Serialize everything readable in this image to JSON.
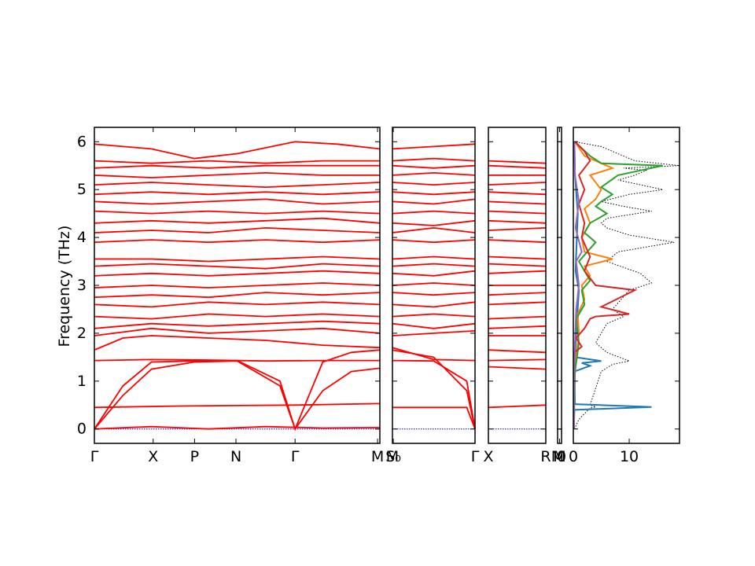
{
  "chart_data": {
    "type": "line",
    "ylabel": "Frequency (THz)",
    "ylim": [
      -0.3,
      6.3
    ],
    "y_ticks": [
      0,
      1,
      2,
      3,
      4,
      5,
      6
    ],
    "band_color": "#ff0000",
    "zero_line_color": "#0000cc",
    "panels": [
      {
        "kind": "band",
        "tick_labels": [
          "Γ",
          "X",
          "P",
          "N",
          "Γ",
          "M"
        ],
        "tick_positions": [
          0,
          0.206,
          0.351,
          0.496,
          0.703,
          0.992
        ],
        "bands": [
          [
            0,
            0,
            0.2,
            0.05,
            0.4,
            0,
            0.6,
            0.05,
            0.8,
            0.02,
            1,
            0.03
          ],
          [
            0,
            0.45,
            0.1,
            0.46,
            0.3,
            0.48,
            0.5,
            0.49,
            0.7,
            0.5,
            1,
            0.53
          ],
          [
            0,
            0,
            0.1,
            0.7,
            0.2,
            1.25,
            0.35,
            1.4,
            0.5,
            1.42,
            0.65,
            0.9,
            0.703,
            0,
            0.8,
            0.8,
            0.9,
            1.2,
            1,
            1.27
          ],
          [
            0,
            0,
            0.1,
            0.9,
            0.2,
            1.4,
            0.35,
            1.42,
            0.5,
            1.43,
            0.65,
            1.0,
            0.703,
            0,
            0.8,
            1.4,
            0.9,
            1.6,
            1,
            1.65
          ],
          [
            0,
            1.43,
            0.2,
            1.45,
            0.4,
            1.44,
            0.6,
            1.42,
            0.8,
            1.43,
            1,
            1.43
          ],
          [
            0,
            1.65,
            0.1,
            1.9,
            0.2,
            1.95,
            0.4,
            1.9,
            0.6,
            1.85,
            0.8,
            1.75,
            1,
            1.7
          ],
          [
            0,
            1.95,
            0.2,
            2.1,
            0.4,
            2.0,
            0.6,
            2.05,
            0.8,
            2.1,
            1,
            2.0
          ],
          [
            0,
            2.1,
            0.2,
            2.2,
            0.4,
            2.15,
            0.6,
            2.2,
            0.8,
            2.25,
            1,
            2.2
          ],
          [
            0,
            2.35,
            0.2,
            2.3,
            0.4,
            2.4,
            0.6,
            2.35,
            0.8,
            2.4,
            1,
            2.35
          ],
          [
            0,
            2.6,
            0.2,
            2.55,
            0.4,
            2.65,
            0.6,
            2.6,
            0.8,
            2.65,
            1,
            2.6
          ],
          [
            0,
            2.75,
            0.2,
            2.8,
            0.4,
            2.75,
            0.6,
            2.85,
            0.8,
            2.8,
            1,
            2.85
          ],
          [
            0,
            2.95,
            0.2,
            3.0,
            0.4,
            2.95,
            0.6,
            3.0,
            0.8,
            3.05,
            1,
            3.0
          ],
          [
            0,
            3.2,
            0.2,
            3.25,
            0.4,
            3.2,
            0.6,
            3.25,
            0.8,
            3.3,
            1,
            3.25
          ],
          [
            0,
            3.4,
            0.2,
            3.45,
            0.4,
            3.4,
            0.6,
            3.35,
            0.8,
            3.45,
            1,
            3.4
          ],
          [
            0,
            3.55,
            0.2,
            3.55,
            0.4,
            3.5,
            0.6,
            3.55,
            0.8,
            3.6,
            1,
            3.55
          ],
          [
            0,
            3.9,
            0.2,
            3.95,
            0.4,
            3.9,
            0.6,
            3.95,
            0.8,
            3.9,
            1,
            3.95
          ],
          [
            0,
            4.1,
            0.2,
            4.15,
            0.4,
            4.1,
            0.6,
            4.2,
            0.8,
            4.15,
            1,
            4.1
          ],
          [
            0,
            4.3,
            0.2,
            4.35,
            0.4,
            4.3,
            0.6,
            4.35,
            0.8,
            4.4,
            1,
            4.3
          ],
          [
            0,
            4.55,
            0.2,
            4.5,
            0.4,
            4.55,
            0.6,
            4.5,
            0.8,
            4.55,
            1,
            4.5
          ],
          [
            0,
            4.75,
            0.2,
            4.7,
            0.4,
            4.75,
            0.6,
            4.8,
            0.8,
            4.7,
            1,
            4.75
          ],
          [
            0,
            4.9,
            0.2,
            4.95,
            0.4,
            4.9,
            0.6,
            4.95,
            0.8,
            4.9,
            1,
            4.95
          ],
          [
            0,
            5.1,
            0.2,
            5.15,
            0.4,
            5.1,
            0.6,
            5.05,
            0.8,
            5.1,
            1,
            5.15
          ],
          [
            0,
            5.3,
            0.2,
            5.25,
            0.4,
            5.3,
            0.6,
            5.35,
            0.8,
            5.3,
            1,
            5.3
          ],
          [
            0,
            5.45,
            0.2,
            5.5,
            0.4,
            5.45,
            0.6,
            5.5,
            0.8,
            5.5,
            1,
            5.5
          ],
          [
            0,
            5.6,
            0.2,
            5.55,
            0.4,
            5.6,
            0.6,
            5.55,
            0.8,
            5.6,
            1,
            5.6
          ],
          [
            0,
            5.95,
            0.2,
            5.85,
            0.35,
            5.65,
            0.5,
            5.75,
            0.703,
            6.0,
            0.85,
            5.95,
            1,
            5.85
          ]
        ]
      },
      {
        "kind": "band",
        "tick_labels": [
          "M",
          "S₀",
          "Γ"
        ],
        "tick_positions": [
          0,
          0.01,
          1
        ],
        "bands": [
          [
            0,
            0.45,
            0.5,
            0.45,
            0.9,
            0.45,
            1,
            0
          ],
          [
            0,
            1.43,
            0.5,
            1.42,
            0.9,
            1.0,
            1,
            0
          ],
          [
            0,
            1.65,
            0.5,
            1.5,
            0.9,
            0.8,
            1,
            0
          ],
          [
            0,
            1.7,
            0.5,
            1.45,
            1,
            1.43
          ],
          [
            0,
            1.95,
            0.5,
            2.0,
            1,
            2.05
          ],
          [
            0,
            2.2,
            0.5,
            2.1,
            1,
            2.2
          ],
          [
            0,
            2.35,
            0.5,
            2.4,
            1,
            2.35
          ],
          [
            0,
            2.6,
            0.5,
            2.55,
            1,
            2.65
          ],
          [
            0,
            2.85,
            0.5,
            2.8,
            1,
            2.85
          ],
          [
            0,
            3.0,
            0.5,
            3.05,
            1,
            3.0
          ],
          [
            0,
            3.25,
            0.5,
            3.2,
            1,
            3.3
          ],
          [
            0,
            3.4,
            0.5,
            3.45,
            1,
            3.4
          ],
          [
            0,
            3.55,
            0.5,
            3.6,
            1,
            3.55
          ],
          [
            0,
            3.95,
            0.5,
            3.9,
            1,
            3.95
          ],
          [
            0,
            4.1,
            0.5,
            4.2,
            1,
            4.1
          ],
          [
            0,
            4.3,
            0.5,
            4.25,
            1,
            4.35
          ],
          [
            0,
            4.5,
            0.5,
            4.55,
            1,
            4.5
          ],
          [
            0,
            4.75,
            0.5,
            4.7,
            1,
            4.8
          ],
          [
            0,
            4.95,
            0.5,
            4.9,
            1,
            4.95
          ],
          [
            0,
            5.15,
            0.5,
            5.1,
            1,
            5.15
          ],
          [
            0,
            5.3,
            0.5,
            5.35,
            1,
            5.3
          ],
          [
            0,
            5.5,
            0.5,
            5.45,
            1,
            5.5
          ],
          [
            0,
            5.6,
            0.5,
            5.65,
            1,
            5.6
          ],
          [
            0,
            5.85,
            0.5,
            5.9,
            1,
            5.95
          ]
        ]
      },
      {
        "kind": "band",
        "tick_labels": [
          "X",
          "R"
        ],
        "tick_positions": [
          0,
          1
        ],
        "bands": [
          [
            0,
            0.45,
            1,
            0.5
          ],
          [
            0,
            1.3,
            1,
            1.25
          ],
          [
            0,
            1.43,
            1,
            1.45
          ],
          [
            0,
            1.65,
            1,
            1.6
          ],
          [
            0,
            1.95,
            1,
            1.95
          ],
          [
            0,
            2.1,
            1,
            2.15
          ],
          [
            0,
            2.3,
            1,
            2.35
          ],
          [
            0,
            2.6,
            1,
            2.65
          ],
          [
            0,
            2.8,
            1,
            2.85
          ],
          [
            0,
            3.0,
            1,
            3.0
          ],
          [
            0,
            3.25,
            1,
            3.3
          ],
          [
            0,
            3.45,
            1,
            3.4
          ],
          [
            0,
            3.6,
            1,
            3.55
          ],
          [
            0,
            3.95,
            1,
            3.9
          ],
          [
            0,
            4.15,
            1,
            4.2
          ],
          [
            0,
            4.35,
            1,
            4.3
          ],
          [
            0,
            4.55,
            1,
            4.5
          ],
          [
            0,
            4.75,
            1,
            4.7
          ],
          [
            0,
            4.95,
            1,
            4.9
          ],
          [
            0,
            5.1,
            1,
            5.15
          ],
          [
            0,
            5.3,
            1,
            5.3
          ],
          [
            0,
            5.5,
            1,
            5.45
          ],
          [
            0,
            5.6,
            1,
            5.55
          ]
        ]
      },
      {
        "kind": "band",
        "tick_labels": [
          "M",
          "M",
          "0"
        ],
        "tick_positions": [
          0,
          0.5,
          1
        ],
        "bands": []
      },
      {
        "kind": "dos",
        "xlim": [
          0,
          19
        ],
        "x_ticks": [
          0,
          10
        ],
        "x_tick_labels": [
          "0",
          "10"
        ],
        "series": [
          {
            "color": "#000000",
            "dotted": true,
            "x": [
              0.2,
              1,
              3,
              4,
              3,
              5,
              7,
              10,
              6,
              4,
              5,
              6,
              9,
              7,
              10,
              14,
              12,
              6,
              8,
              18,
              10,
              6,
              5,
              6,
              14,
              9,
              5,
              10,
              16,
              12,
              8,
              11,
              13,
              9,
              19,
              11,
              5,
              0.2
            ],
            "y": [
              0,
              0.2,
              0.44,
              0.46,
              0.5,
              1.2,
              1.35,
              1.42,
              1.6,
              1.8,
              2.0,
              2.2,
              2.35,
              2.5,
              2.9,
              3.05,
              3.25,
              3.5,
              3.7,
              3.9,
              4.05,
              4.2,
              4.3,
              4.4,
              4.55,
              4.65,
              4.75,
              4.9,
              5.0,
              5.1,
              5.2,
              5.3,
              5.4,
              5.45,
              5.5,
              5.6,
              5.9,
              6.0
            ]
          },
          {
            "color": "#1f77b4",
            "x": [
              0.1,
              0.2,
              14,
              0.3,
              0.2,
              3,
              1.5,
              5,
              0.3,
              0.5,
              1,
              0.4,
              0.8,
              0.3,
              0.2
            ],
            "y": [
              0,
              0.4,
              0.46,
              0.52,
              1.2,
              1.32,
              1.38,
              1.42,
              1.5,
              2.0,
              2.9,
              3.3,
              4.5,
              5.3,
              6.0
            ]
          },
          {
            "color": "#ff7f0e",
            "x": [
              0.1,
              0.2,
              0.5,
              1,
              0.8,
              2,
              1.5,
              3,
              2,
              7,
              2,
              1.5,
              3,
              2,
              4,
              5,
              3,
              7,
              2,
              0.3
            ],
            "y": [
              0,
              1.0,
              1.5,
              2.0,
              2.4,
              2.7,
              3.0,
              3.2,
              3.4,
              3.55,
              3.7,
              4.0,
              4.3,
              4.6,
              4.8,
              5.0,
              5.3,
              5.45,
              5.7,
              6.0
            ]
          },
          {
            "color": "#2ca02c",
            "x": [
              0.1,
              0.3,
              1,
              0.5,
              2,
              1.5,
              3,
              1,
              4,
              2,
              3,
              6,
              4,
              5,
              7,
              5,
              8,
              16,
              5,
              3,
              0.3
            ],
            "y": [
              0,
              1.2,
              1.8,
              2.3,
              2.6,
              2.9,
              3.1,
              3.5,
              3.9,
              4.1,
              4.3,
              4.5,
              4.65,
              4.75,
              4.9,
              5.05,
              5.3,
              5.5,
              5.55,
              5.7,
              6.0
            ]
          },
          {
            "color": "#d62728",
            "x": [
              0.1,
              0.2,
              1.5,
              0.5,
              2,
              3,
              4,
              10,
              5,
              11,
              4,
              2,
              3,
              1.5,
              2,
              1,
              2,
              1,
              3,
              2,
              0.3
            ],
            "y": [
              0,
              1.6,
              1.72,
              1.9,
              2.1,
              2.3,
              2.35,
              2.4,
              2.55,
              2.9,
              3.0,
              3.3,
              3.6,
              4.0,
              4.3,
              4.7,
              5.0,
              5.3,
              5.6,
              5.8,
              6.0
            ]
          },
          {
            "color": "#9467bd",
            "x": [
              0.1,
              0.2,
              0.5,
              1,
              0.5,
              1.5,
              0.4,
              1,
              0.3,
              0.2
            ],
            "y": [
              0,
              1.5,
              2.5,
              3.0,
              3.5,
              3.7,
              4.2,
              4.75,
              5.3,
              6.0
            ]
          }
        ]
      }
    ]
  }
}
